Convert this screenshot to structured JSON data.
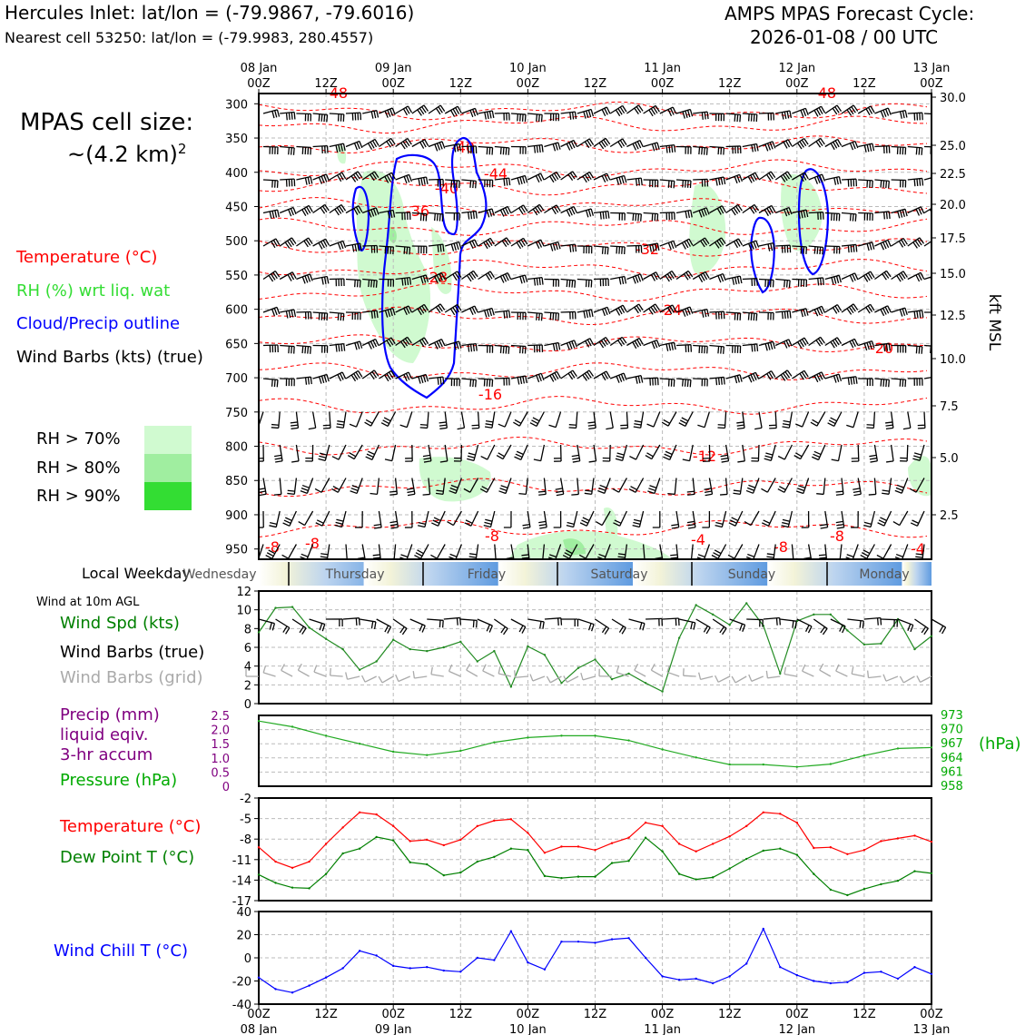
{
  "header": {
    "location": "Hercules Inlet: lat/lon = (-79.9867, -79.6016)",
    "nearest_cell": "Nearest cell 53250: lat/lon = (-79.9983, 280.4557)",
    "forecast_label": "AMPS MPAS Forecast Cycle:",
    "forecast_cycle": "2026-01-08 / 00 UTC",
    "cell_size_label": "MPAS cell size:",
    "cell_size_value": "~(4.2 km)",
    "cell_size_exp": "2"
  },
  "colors": {
    "temperature": "#ff0000",
    "rh": "#33dd33",
    "cloud": "#0000ff",
    "wind": "#000000",
    "grid_wind": "#aaaaaa",
    "precip": "#800080",
    "pressure": "#00aa00",
    "dewpoint": "#008000",
    "windchill": "#0000ff"
  },
  "legend": {
    "temperature": "Temperature (°C)",
    "rh": "RH (%) wrt liq. wat",
    "cloud": "Cloud/Precip outline",
    "wind": "Wind Barbs (kts) (true)",
    "rh70": "RH > 70%",
    "rh80": "RH > 80%",
    "rh90": "RH > 90%"
  },
  "time_axis": {
    "top_ticks": [
      "08 Jan\n00Z",
      "12Z",
      "09 Jan\n00Z",
      "12Z",
      "10 Jan\n00Z",
      "12Z",
      "11 Jan\n00Z",
      "12Z",
      "12 Jan\n00Z",
      "12Z",
      "13 Jan\n00Z"
    ],
    "bottom_ticks": [
      "00Z\n08 Jan",
      "12Z",
      "00Z\n09 Jan",
      "12Z",
      "00Z\n10 Jan",
      "12Z",
      "00Z\n11 Jan",
      "12Z",
      "00Z\n12 Jan",
      "12Z",
      "00Z\n13 Jan"
    ],
    "hours": [
      0,
      12,
      24,
      36,
      48,
      60,
      72,
      84,
      96,
      108,
      120
    ]
  },
  "weekday_strip": {
    "label": "Local Weekday",
    "days": [
      "Wednesday",
      "Thursday",
      "Friday",
      "Saturday",
      "Sunday",
      "Monday"
    ]
  },
  "cross_section": {
    "pressure_ticks": [
      "300",
      "350",
      "400",
      "450",
      "500",
      "550",
      "600",
      "650",
      "700",
      "750",
      "800",
      "850",
      "900",
      "950"
    ],
    "height_ticks": [
      "30.0",
      "25.0",
      "22.5",
      "20.0",
      "17.5",
      "15.0",
      "12.5",
      "10.0",
      "7.5",
      "5.0",
      "2.5"
    ],
    "height_axis_label": "kft MSL",
    "temperature_contour_labels": [
      "-48",
      "-48",
      "-40",
      "-44",
      "-40",
      "-36",
      "-32",
      "-28",
      "-24",
      "-20",
      "-16",
      "-12",
      "-8",
      "-8",
      "-8",
      "-4",
      "-4",
      "-8",
      "-8"
    ]
  },
  "chart_data": [
    {
      "type": "line",
      "title": "Wind at 10m AGL",
      "ylim": [
        0,
        12
      ],
      "yticks": [
        "12",
        "10",
        "8",
        "6",
        "4",
        "2",
        "0"
      ],
      "legend": {
        "speed": "Wind Spd (kts)",
        "barbs_true": "Wind Barbs (true)",
        "barbs_grid": "Wind Barbs (grid)"
      },
      "x": [
        0,
        3,
        6,
        9,
        12,
        15,
        18,
        21,
        24,
        27,
        30,
        33,
        36,
        39,
        42,
        45,
        48,
        51,
        54,
        57,
        60,
        63,
        66,
        69,
        72,
        75,
        78,
        81,
        84,
        87,
        90,
        93,
        96,
        99,
        102,
        105,
        108,
        111,
        114,
        117,
        120
      ],
      "series": [
        {
          "name": "Wind Spd (kts)",
          "values": [
            7.6,
            10.2,
            10.3,
            8.1,
            6.9,
            5.8,
            3.6,
            4.5,
            6.8,
            5.8,
            5.6,
            6.0,
            6.6,
            4.5,
            5.6,
            1.8,
            6.1,
            5.2,
            2.2,
            3.8,
            4.7,
            2.6,
            3.2,
            2.2,
            1.3,
            7.0,
            10.5,
            9.5,
            8.4,
            10.7,
            8.3,
            3.2,
            8.8,
            9.5,
            9.5,
            7.8,
            6.3,
            6.4,
            9.0,
            5.8,
            7.2
          ]
        }
      ]
    },
    {
      "type": "line",
      "title": "Pressure",
      "ylim_precip": [
        0,
        2.5
      ],
      "yticks_left": [
        "2.5",
        "2.0",
        "1.5",
        "1.0",
        "0.5",
        "0"
      ],
      "yticks_right": [
        "973",
        "970",
        "967",
        "964",
        "961",
        "958"
      ],
      "right_axis_label": "(hPa)",
      "legend": {
        "precip": "Precip (mm)",
        "precip2": "liquid eqiv.",
        "precip3": "3-hr accum",
        "pressure": "Pressure (hPa)"
      },
      "ylim": [
        958,
        973
      ],
      "x": [
        0,
        6,
        12,
        18,
        24,
        30,
        36,
        42,
        48,
        54,
        60,
        66,
        72,
        78,
        84,
        90,
        96,
        102,
        108,
        114,
        120
      ],
      "series": [
        {
          "name": "Pressure (hPa)",
          "values": [
            971.8,
            970.6,
            968.7,
            967.0,
            965.3,
            964.6,
            965.5,
            967.3,
            968.3,
            968.7,
            968.7,
            967.7,
            965.8,
            964.1,
            962.6,
            962.6,
            962.1,
            962.7,
            964.5,
            966.0,
            966.2
          ]
        }
      ]
    },
    {
      "type": "line",
      "title": "Temperature / Dew Point",
      "ylim": [
        -17,
        -2
      ],
      "yticks": [
        "-2",
        "-5",
        "-8",
        "-11",
        "-14",
        "-17"
      ],
      "legend": {
        "temperature": "Temperature (°C)",
        "dewpoint": "Dew Point T (°C)"
      },
      "x": [
        0,
        3,
        6,
        9,
        12,
        15,
        18,
        21,
        24,
        27,
        30,
        33,
        36,
        39,
        42,
        45,
        48,
        51,
        54,
        57,
        60,
        63,
        66,
        69,
        72,
        75,
        78,
        81,
        84,
        87,
        90,
        93,
        96,
        99,
        102,
        105,
        108,
        111,
        114,
        117,
        120
      ],
      "series": [
        {
          "name": "Temperature (°C)",
          "values": [
            -9.2,
            -11.3,
            -12.2,
            -11.3,
            -8.7,
            -6.3,
            -4.1,
            -4.4,
            -6.1,
            -8.3,
            -8.1,
            -8.9,
            -8.1,
            -6.1,
            -5.3,
            -5.1,
            -7.1,
            -10.0,
            -9.1,
            -9.1,
            -9.6,
            -8.6,
            -7.8,
            -5.6,
            -6.1,
            -8.7,
            -9.8,
            -8.7,
            -7.6,
            -6.1,
            -4.1,
            -4.3,
            -5.6,
            -9.3,
            -9.2,
            -10.2,
            -9.6,
            -8.3,
            -7.9,
            -7.5,
            -8.4
          ]
        },
        {
          "name": "Dew Point T (°C)",
          "values": [
            -13.2,
            -14.4,
            -15.1,
            -15.2,
            -13.1,
            -10.1,
            -9.4,
            -7.7,
            -8.2,
            -11.4,
            -11.7,
            -13.3,
            -12.9,
            -11.3,
            -10.6,
            -9.4,
            -9.6,
            -13.4,
            -13.7,
            -13.5,
            -13.5,
            -11.5,
            -11.2,
            -7.8,
            -9.8,
            -13.1,
            -13.9,
            -13.6,
            -12.3,
            -10.9,
            -9.7,
            -9.4,
            -10.3,
            -13.1,
            -15.4,
            -16.2,
            -15.3,
            -14.6,
            -14.1,
            -12.7,
            -13.0
          ]
        }
      ]
    },
    {
      "type": "line",
      "title": "Wind Chill",
      "ylim": [
        -40,
        40
      ],
      "yticks": [
        "40",
        "20",
        "0",
        "-20",
        "-40"
      ],
      "legend": {
        "windchill": "Wind Chill T (°C)"
      },
      "x": [
        0,
        3,
        6,
        9,
        12,
        15,
        18,
        21,
        24,
        27,
        30,
        33,
        36,
        39,
        42,
        45,
        48,
        51,
        54,
        57,
        60,
        63,
        66,
        69,
        72,
        75,
        78,
        81,
        84,
        87,
        90,
        93,
        96,
        99,
        102,
        105,
        108,
        111,
        114,
        117,
        120
      ],
      "series": [
        {
          "name": "Wind Chill T (°C)",
          "values": [
            -17,
            -27,
            -30,
            -24,
            -17,
            -9,
            6,
            2,
            -7,
            -9,
            -8,
            -11,
            -12,
            0,
            -2,
            23,
            -4,
            -10,
            14,
            14,
            13,
            16,
            17,
            0,
            -16,
            -19,
            -18,
            -22,
            -16,
            -5,
            25,
            -8,
            -15,
            -20,
            -22,
            -21,
            -13,
            -12,
            -18,
            -8,
            -14
          ]
        }
      ]
    }
  ]
}
